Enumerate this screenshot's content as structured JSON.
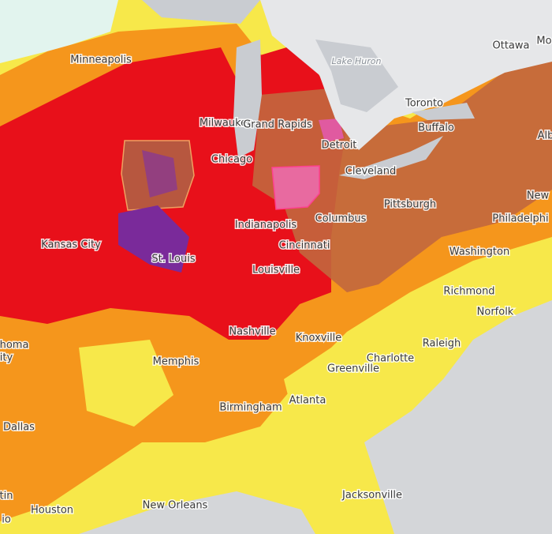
{
  "map": {
    "water_labels": [
      "Lake Huron"
    ],
    "cities": [
      "Minneapolis",
      "Ottawa",
      "Mo",
      "Toronto",
      "Buffalo",
      "Alb",
      "Milwaukee",
      "Grand Rapids",
      "Detroit",
      "Chicago",
      "Cleveland",
      "New",
      "Pittsburgh",
      "Indianapolis",
      "Columbus",
      "Philadelphi",
      "Kansas City",
      "St. Louis",
      "Cincinnati",
      "Washington",
      "Louisville",
      "Richmond",
      "Norfolk",
      "Nashville",
      "Knoxville",
      "Raleigh",
      "homa",
      "ity",
      "Charlotte",
      "Greenville",
      "Memphis",
      "Birmingham",
      "Atlanta",
      "Dallas",
      "tin",
      "Jacksonville",
      "New Orleans",
      "Houston",
      "io"
    ]
  }
}
